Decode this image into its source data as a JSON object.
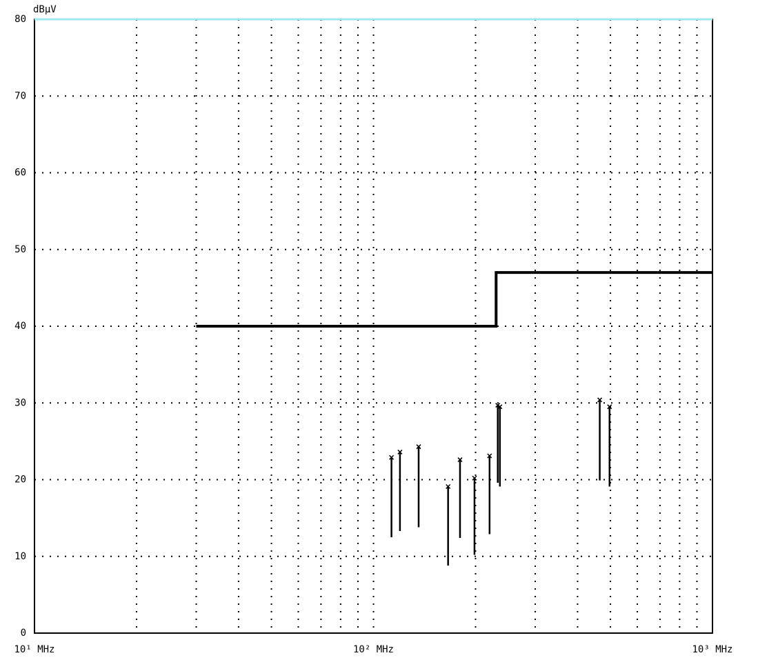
{
  "chart_data": {
    "type": "emc",
    "y_label": "dBµV",
    "xlog": true,
    "xlim": [
      10,
      1000
    ],
    "ylim": [
      0,
      80
    ],
    "yticks": [
      0,
      10,
      20,
      30,
      40,
      50,
      60,
      70,
      80
    ],
    "xticks": [
      {
        "value": 10,
        "label": "10¹ MHz"
      },
      {
        "value": 100,
        "label": "10² MHz"
      },
      {
        "value": 1000,
        "label": "10³ MHz"
      }
    ],
    "xminor": [
      20,
      30,
      40,
      50,
      60,
      70,
      80,
      90,
      200,
      300,
      400,
      500,
      600,
      700,
      800,
      900
    ],
    "grid": true,
    "limit": {
      "color": "#000000",
      "x": [
        30,
        230,
        230,
        1000
      ],
      "values": [
        40,
        40,
        47,
        47
      ]
    },
    "measurements": {
      "color": "#000000",
      "x": [
        113,
        119.7,
        135.9,
        166,
        180,
        198.6,
        220,
        232.6,
        236,
        465,
        497
      ],
      "values": [
        22.9,
        23.6,
        24.3,
        19.1,
        22.6,
        20.2,
        23.1,
        29.7,
        29.5,
        30.4,
        29.5
      ],
      "low": [
        12.5,
        13.3,
        13.8,
        8.8,
        12.4,
        10.2,
        12.9,
        19.6,
        19.1,
        19.9,
        19.1
      ]
    }
  }
}
